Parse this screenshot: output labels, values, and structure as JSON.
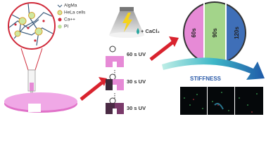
{
  "legend": {
    "items": [
      "AlgMa",
      "HeLa cells",
      "Ca++",
      "PI"
    ]
  },
  "crosslinker": "+ CaCl₂",
  "steps": [
    "60 s UV",
    "30 s UV",
    "30 s UV"
  ],
  "segments": [
    "60s",
    "90s",
    "120s"
  ],
  "arrow_label": "STIFFNESS"
}
